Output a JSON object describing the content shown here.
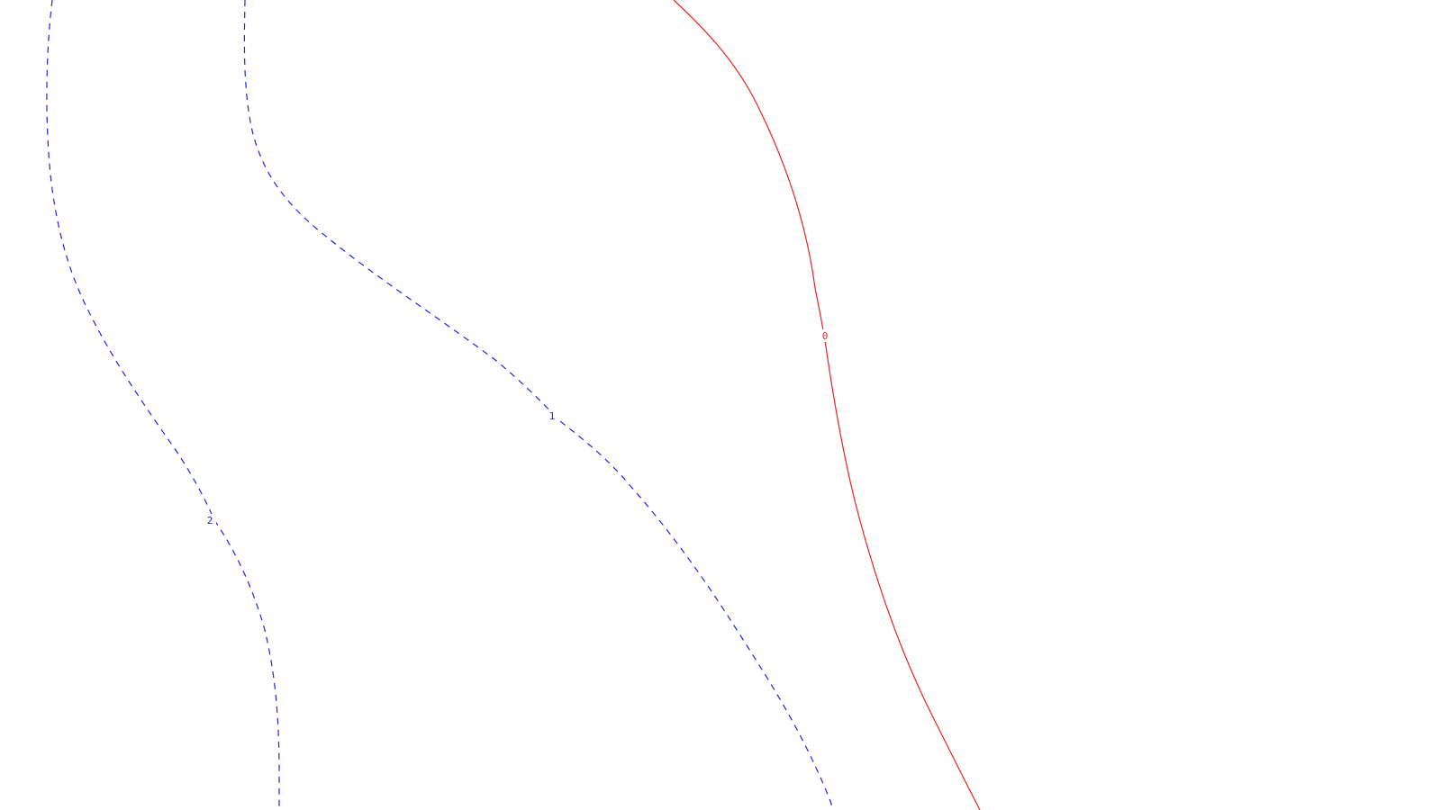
{
  "contours": [
    {
      "level": "2",
      "style": "dashed",
      "color": "#2222ee"
    },
    {
      "level": "1",
      "style": "dashed",
      "color": "#2222ee"
    },
    {
      "level": "0",
      "style": "solid",
      "color": "#ee2222"
    }
  ]
}
